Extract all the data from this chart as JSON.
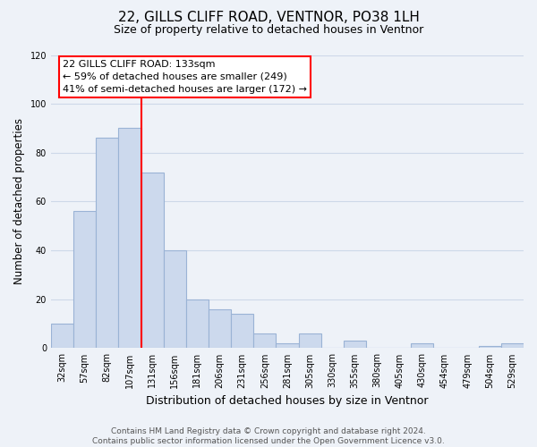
{
  "title": "22, GILLS CLIFF ROAD, VENTNOR, PO38 1LH",
  "subtitle": "Size of property relative to detached houses in Ventnor",
  "xlabel": "Distribution of detached houses by size in Ventnor",
  "ylabel": "Number of detached properties",
  "bar_labels": [
    "32sqm",
    "57sqm",
    "82sqm",
    "107sqm",
    "131sqm",
    "156sqm",
    "181sqm",
    "206sqm",
    "231sqm",
    "256sqm",
    "281sqm",
    "305sqm",
    "330sqm",
    "355sqm",
    "380sqm",
    "405sqm",
    "430sqm",
    "454sqm",
    "479sqm",
    "504sqm",
    "529sqm"
  ],
  "bar_values": [
    10,
    56,
    86,
    90,
    72,
    40,
    20,
    16,
    14,
    6,
    2,
    6,
    0,
    3,
    0,
    0,
    2,
    0,
    0,
    1,
    2
  ],
  "bar_color": "#ccd9ed",
  "bar_edge_color": "#9ab3d5",
  "highlight_line_color": "red",
  "annotation_line1": "22 GILLS CLIFF ROAD: 133sqm",
  "annotation_line2": "← 59% of detached houses are smaller (249)",
  "annotation_line3": "41% of semi-detached houses are larger (172) →",
  "annotation_box_color": "white",
  "annotation_box_edge_color": "red",
  "ylim": [
    0,
    120
  ],
  "yticks": [
    0,
    20,
    40,
    60,
    80,
    100,
    120
  ],
  "footer_text": "Contains HM Land Registry data © Crown copyright and database right 2024.\nContains public sector information licensed under the Open Government Licence v3.0.",
  "grid_color": "#cdd8e8",
  "background_color": "#eef2f8"
}
